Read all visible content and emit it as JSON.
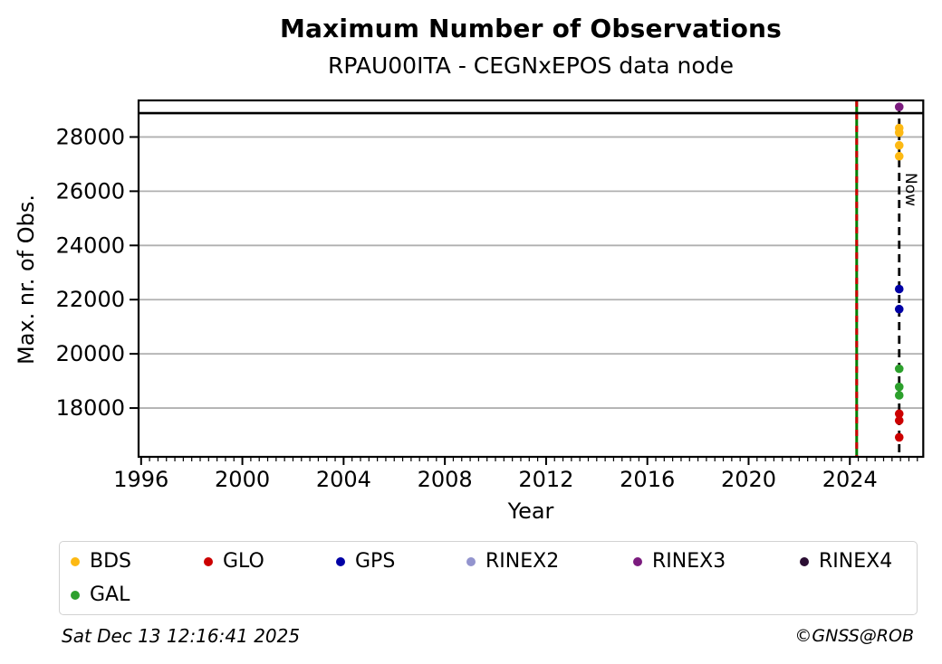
{
  "footer": {
    "timestamp": "Sat Dec 13 12:16:41 2025",
    "credit": "©GNSS@ROB"
  },
  "chart_data": {
    "type": "scatter",
    "title": "Maximum Number of Observations",
    "subtitle": "RPAU00ITA - CEGNxEPOS data node",
    "xlabel": "Year",
    "ylabel": "Max. nr. of Obs.",
    "xlim": [
      1995.9,
      2026.9
    ],
    "ylim": [
      16200,
      29350
    ],
    "xticks": [
      1996,
      2000,
      2004,
      2008,
      2012,
      2016,
      2020,
      2024
    ],
    "x_minor_tick_step": 0.33333,
    "yticks": [
      18000,
      20000,
      22000,
      24000,
      26000,
      28000
    ],
    "grid": "horizontal-only",
    "grid_color": "#b0b0b0",
    "frame_color": "#000000",
    "legend_position": "bottom",
    "series": [
      {
        "name": "BDS",
        "color": "#fdb913",
        "points": [
          {
            "x": 2025.95,
            "y": 28330
          },
          {
            "x": 2025.95,
            "y": 28160
          },
          {
            "x": 2025.95,
            "y": 27690
          },
          {
            "x": 2025.95,
            "y": 27290
          }
        ]
      },
      {
        "name": "GLO",
        "color": "#cc0000",
        "points": [
          {
            "x": 2025.95,
            "y": 17790
          },
          {
            "x": 2025.95,
            "y": 17540
          },
          {
            "x": 2025.95,
            "y": 16920
          }
        ]
      },
      {
        "name": "GPS",
        "color": "#0000a5",
        "points": [
          {
            "x": 2025.95,
            "y": 22390
          },
          {
            "x": 2025.95,
            "y": 21650
          }
        ]
      },
      {
        "name": "RINEX2",
        "color": "#9394ce",
        "points": []
      },
      {
        "name": "RINEX3",
        "color": "#7b1b7e",
        "points": [
          {
            "x": 2025.95,
            "y": 29110
          }
        ]
      },
      {
        "name": "RINEX4",
        "color": "#2b0e33",
        "points": []
      },
      {
        "name": "GAL",
        "color": "#2ca02c",
        "points": [
          {
            "x": 2025.95,
            "y": 19450
          },
          {
            "x": 2025.95,
            "y": 18780
          },
          {
            "x": 2025.95,
            "y": 18470
          }
        ]
      }
    ],
    "annotations": {
      "hline": {
        "y": 28880,
        "color": "#000000",
        "style": "solid"
      },
      "vlines": [
        {
          "x": 2024.27,
          "color": "#008000",
          "style": "solid",
          "overlay": {
            "color": "#cc0000",
            "style": "dashed"
          },
          "label": ""
        },
        {
          "x": 2025.95,
          "color": "#000000",
          "style": "dashed",
          "label": "Now"
        }
      ]
    }
  }
}
